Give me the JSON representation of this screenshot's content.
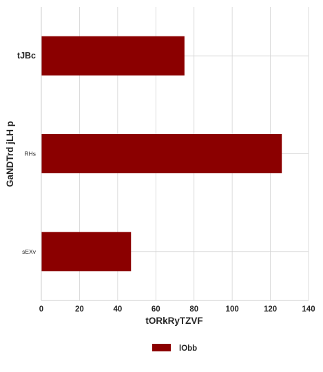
{
  "chart_data": {
    "type": "bar",
    "orientation": "horizontal",
    "categories": [
      "tJBc",
      "RHs",
      "sEXv"
    ],
    "series": [
      {
        "name": "lObb",
        "values": [
          75,
          126,
          47
        ],
        "color": "#8b0000"
      }
    ],
    "xlabel": "tORkRyTZVF",
    "ylabel": "GaNDTrd jLH p",
    "xlim": [
      0,
      140
    ],
    "xticks": [
      0,
      20,
      40,
      60,
      80,
      100,
      120,
      140
    ],
    "grid": true,
    "legend_position": "bottom-center"
  }
}
